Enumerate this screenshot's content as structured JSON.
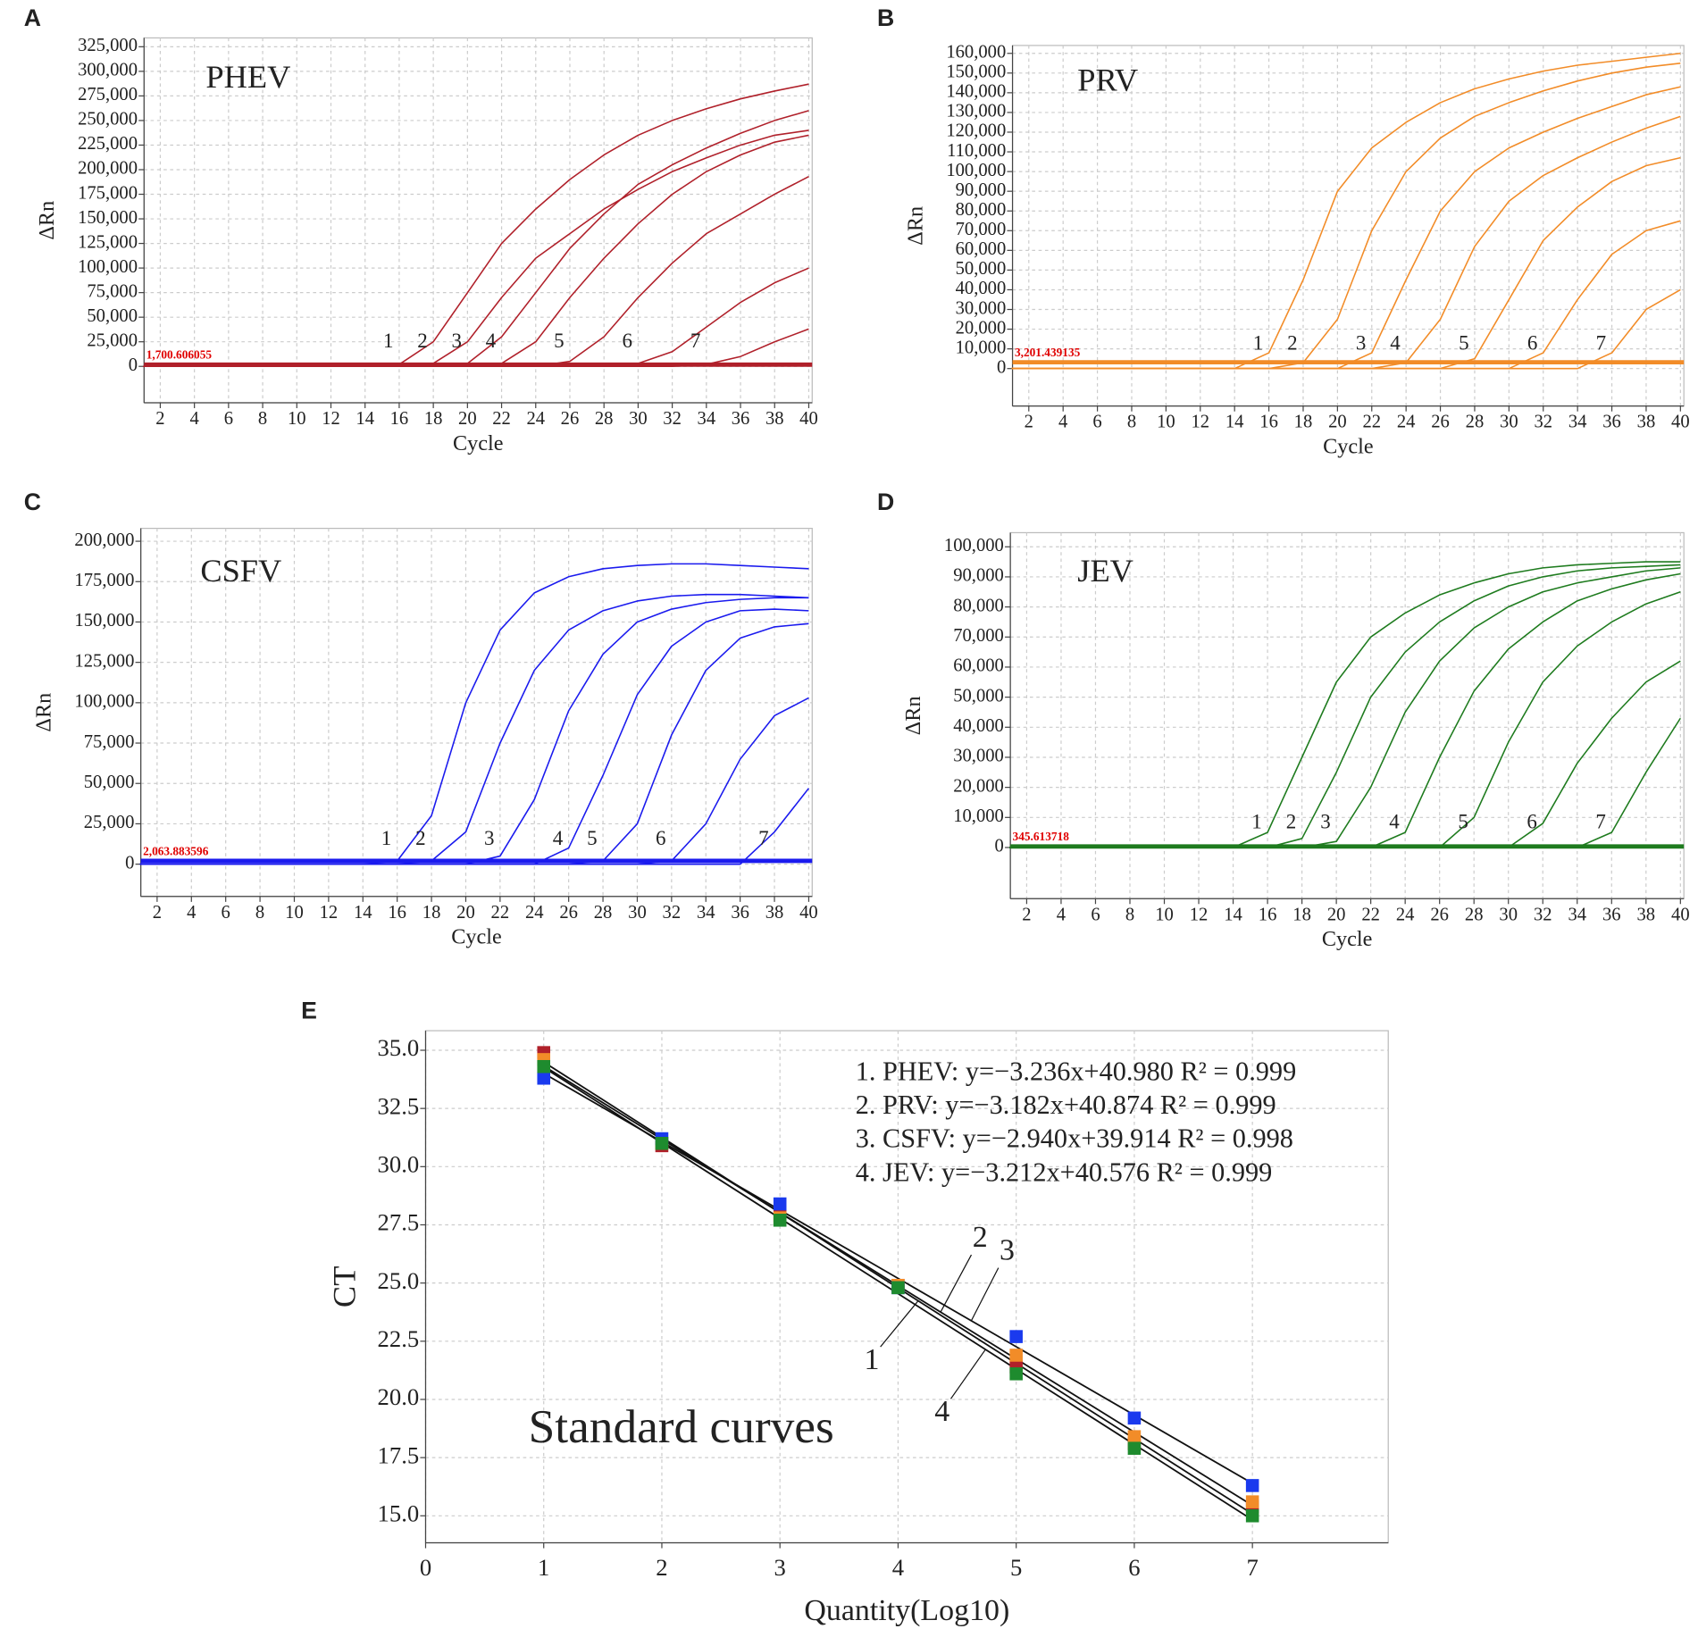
{
  "chart_data": [
    {
      "type": "line",
      "panel_label": "A",
      "title": "PHEV",
      "x_label": "Cycle",
      "y_label": "ΔRn",
      "color": "#b0202a",
      "grid": true,
      "threshold": {
        "value": 1700.606055,
        "label": "1,700.606055"
      },
      "xlim": [
        1.05,
        40.2
      ],
      "xticks": [
        2,
        4,
        6,
        8,
        10,
        12,
        14,
        16,
        18,
        20,
        22,
        24,
        26,
        28,
        30,
        32,
        34,
        36,
        38,
        40
      ],
      "ylim": [
        -37000,
        334000
      ],
      "yticks": [
        0,
        {
          "value": 25000,
          "label": "25,000"
        },
        {
          "value": 50000,
          "label": "50,000"
        },
        {
          "value": 75000,
          "label": "75,000"
        },
        {
          "value": 100000,
          "label": "100,000"
        },
        {
          "value": 125000,
          "label": "125,000"
        },
        {
          "value": 150000,
          "label": "150,000"
        },
        {
          "value": 175000,
          "label": "175,000"
        },
        {
          "value": 200000,
          "label": "200,000"
        },
        {
          "value": 225000,
          "label": "225,000"
        },
        {
          "value": 250000,
          "label": "250,000"
        },
        {
          "value": 275000,
          "label": "275,000"
        },
        {
          "value": 300000,
          "label": "300,000"
        },
        {
          "value": 325000,
          "label": "325,000"
        }
      ],
      "x": [
        1,
        8,
        14,
        16,
        18,
        20,
        22,
        24,
        26,
        28,
        30,
        32,
        34,
        36,
        38,
        40
      ],
      "series": [
        {
          "name": "1",
          "values": [
            0,
            0,
            0,
            2000,
            25000,
            75000,
            125000,
            160000,
            190000,
            215000,
            235000,
            250000,
            262000,
            272000,
            280000,
            287000
          ]
        },
        {
          "name": "2",
          "values": [
            0,
            0,
            0,
            0,
            3000,
            25000,
            70000,
            110000,
            135000,
            160000,
            180000,
            198000,
            212000,
            225000,
            235000,
            240000
          ]
        },
        {
          "name": "3",
          "values": [
            0,
            0,
            0,
            0,
            0,
            3000,
            30000,
            75000,
            120000,
            155000,
            185000,
            205000,
            222000,
            237000,
            250000,
            260000
          ]
        },
        {
          "name": "4",
          "values": [
            0,
            0,
            0,
            0,
            0,
            0,
            3000,
            25000,
            70000,
            110000,
            145000,
            175000,
            198000,
            215000,
            228000,
            235000
          ]
        },
        {
          "name": "5",
          "values": [
            0,
            0,
            0,
            0,
            0,
            0,
            0,
            0,
            5000,
            30000,
            70000,
            105000,
            135000,
            155000,
            175000,
            193000
          ]
        },
        {
          "name": "6",
          "values": [
            0,
            0,
            0,
            0,
            0,
            0,
            0,
            0,
            0,
            0,
            3000,
            15000,
            40000,
            65000,
            85000,
            100000
          ]
        },
        {
          "name": "7",
          "values": [
            0,
            0,
            0,
            0,
            0,
            0,
            0,
            0,
            0,
            0,
            0,
            0,
            2000,
            10000,
            25000,
            38000
          ]
        }
      ]
    },
    {
      "type": "line",
      "panel_label": "B",
      "title": "PRV",
      "x_label": "Cycle",
      "y_label": "ΔRn",
      "color": "#f28c28",
      "grid": true,
      "threshold": {
        "value": 3201.439135,
        "label": "3,201.439135"
      },
      "xlim": [
        1.05,
        40.2
      ],
      "xticks": [
        2,
        4,
        6,
        8,
        10,
        12,
        14,
        16,
        18,
        20,
        22,
        24,
        26,
        28,
        30,
        32,
        34,
        36,
        38,
        40
      ],
      "ylim": [
        -19000,
        164000
      ],
      "yticks": [
        0,
        {
          "value": 10000,
          "label": "10,000"
        },
        {
          "value": 20000,
          "label": "20,000"
        },
        {
          "value": 30000,
          "label": "30,000"
        },
        {
          "value": 40000,
          "label": "40,000"
        },
        {
          "value": 50000,
          "label": "50,000"
        },
        {
          "value": 60000,
          "label": "60,000"
        },
        {
          "value": 70000,
          "label": "70,000"
        },
        {
          "value": 80000,
          "label": "80,000"
        },
        {
          "value": 90000,
          "label": "90,000"
        },
        {
          "value": 100000,
          "label": "100,000"
        },
        {
          "value": 110000,
          "label": "110,000"
        },
        {
          "value": 120000,
          "label": "120,000"
        },
        {
          "value": 130000,
          "label": "130,000"
        },
        {
          "value": 140000,
          "label": "140,000"
        },
        {
          "value": 150000,
          "label": "150,000"
        },
        {
          "value": 160000,
          "label": "160,000"
        }
      ],
      "x": [
        1,
        8,
        14,
        16,
        18,
        20,
        22,
        24,
        26,
        28,
        30,
        32,
        34,
        36,
        38,
        40
      ],
      "series": [
        {
          "name": "1",
          "values": [
            0,
            0,
            0,
            8000,
            45000,
            90000,
            112000,
            125000,
            135000,
            142000,
            147000,
            151000,
            154000,
            156000,
            158000,
            160000
          ]
        },
        {
          "name": "2",
          "values": [
            0,
            0,
            0,
            0,
            3000,
            25000,
            70000,
            100000,
            117000,
            128000,
            135000,
            141000,
            146000,
            150000,
            153000,
            155000
          ]
        },
        {
          "name": "3",
          "values": [
            0,
            0,
            0,
            0,
            0,
            0,
            8000,
            45000,
            80000,
            100000,
            112000,
            120000,
            127000,
            133000,
            139000,
            143000
          ]
        },
        {
          "name": "4",
          "values": [
            0,
            0,
            0,
            0,
            0,
            0,
            0,
            3000,
            25000,
            62000,
            85000,
            98000,
            107000,
            115000,
            122000,
            128000
          ]
        },
        {
          "name": "5",
          "values": [
            0,
            0,
            0,
            0,
            0,
            0,
            0,
            0,
            0,
            5000,
            35000,
            65000,
            82000,
            95000,
            103000,
            107000
          ]
        },
        {
          "name": "6",
          "values": [
            0,
            0,
            0,
            0,
            0,
            0,
            0,
            0,
            0,
            0,
            0,
            8000,
            35000,
            58000,
            70000,
            75000
          ]
        },
        {
          "name": "7",
          "values": [
            0,
            0,
            0,
            0,
            0,
            0,
            0,
            0,
            0,
            0,
            0,
            0,
            0,
            8000,
            30000,
            40000
          ]
        }
      ]
    },
    {
      "type": "line",
      "panel_label": "C",
      "title": "CSFV",
      "x_label": "Cycle",
      "y_label": "ΔRn",
      "color": "#1a1aee",
      "grid": true,
      "threshold": {
        "value": 2063.883596,
        "label": "2,063.883596"
      },
      "xlim": [
        1.05,
        40.2
      ],
      "xticks": [
        2,
        4,
        6,
        8,
        10,
        12,
        14,
        16,
        18,
        20,
        22,
        24,
        26,
        28,
        30,
        32,
        34,
        36,
        38,
        40
      ],
      "ylim": [
        -20000,
        208000
      ],
      "yticks": [
        0,
        {
          "value": 25000,
          "label": "25,000"
        },
        {
          "value": 50000,
          "label": "50,000"
        },
        {
          "value": 75000,
          "label": "75,000"
        },
        {
          "value": 100000,
          "label": "100,000"
        },
        {
          "value": 125000,
          "label": "125,000"
        },
        {
          "value": 150000,
          "label": "150,000"
        },
        {
          "value": 175000,
          "label": "175,000"
        },
        {
          "value": 200000,
          "label": "200,000"
        }
      ],
      "x": [
        1,
        8,
        14,
        16,
        18,
        20,
        22,
        24,
        26,
        28,
        30,
        32,
        34,
        36,
        38,
        40
      ],
      "series": [
        {
          "name": "1",
          "values": [
            0,
            0,
            0,
            2000,
            30000,
            100000,
            145000,
            168000,
            178000,
            183000,
            185000,
            186000,
            186000,
            185000,
            184000,
            183000
          ]
        },
        {
          "name": "2",
          "values": [
            0,
            0,
            0,
            0,
            2000,
            20000,
            75000,
            120000,
            145000,
            157000,
            163000,
            166000,
            167000,
            167000,
            166000,
            165000
          ]
        },
        {
          "name": "3",
          "values": [
            0,
            0,
            0,
            0,
            0,
            0,
            5000,
            40000,
            95000,
            130000,
            150000,
            158000,
            162000,
            164000,
            165000,
            165000
          ]
        },
        {
          "name": "4",
          "values": [
            0,
            0,
            0,
            0,
            0,
            0,
            0,
            0,
            10000,
            55000,
            105000,
            135000,
            150000,
            157000,
            158000,
            157000
          ]
        },
        {
          "name": "5",
          "values": [
            0,
            0,
            0,
            0,
            0,
            0,
            0,
            0,
            0,
            2000,
            25000,
            80000,
            120000,
            140000,
            147000,
            149000
          ]
        },
        {
          "name": "6",
          "values": [
            0,
            0,
            0,
            0,
            0,
            0,
            0,
            0,
            0,
            0,
            0,
            2000,
            25000,
            65000,
            92000,
            103000
          ]
        },
        {
          "name": "7",
          "values": [
            0,
            0,
            0,
            0,
            0,
            0,
            0,
            0,
            0,
            0,
            0,
            0,
            0,
            0,
            20000,
            47000
          ]
        }
      ]
    },
    {
      "type": "line",
      "panel_label": "D",
      "title": "JEV",
      "x_label": "Cycle",
      "y_label": "ΔRn",
      "color": "#1e7b1e",
      "grid": true,
      "threshold": {
        "value": 345.613718,
        "label": "345.613718"
      },
      "xlim": [
        1.05,
        40.2
      ],
      "xticks": [
        2,
        4,
        6,
        8,
        10,
        12,
        14,
        16,
        18,
        20,
        22,
        24,
        26,
        28,
        30,
        32,
        34,
        36,
        38,
        40
      ],
      "ylim": [
        -17000,
        104700
      ],
      "yticks": [
        0,
        {
          "value": 10000,
          "label": "10,000"
        },
        {
          "value": 20000,
          "label": "20,000"
        },
        {
          "value": 30000,
          "label": "30,000"
        },
        {
          "value": 40000,
          "label": "40,000"
        },
        {
          "value": 50000,
          "label": "50,000"
        },
        {
          "value": 60000,
          "label": "60,000"
        },
        {
          "value": 70000,
          "label": "70,000"
        },
        {
          "value": 80000,
          "label": "80,000"
        },
        {
          "value": 90000,
          "label": "90,000"
        },
        {
          "value": 100000,
          "label": "100,000"
        }
      ],
      "x": [
        1,
        8,
        14,
        16,
        18,
        20,
        22,
        24,
        26,
        28,
        30,
        32,
        34,
        36,
        38,
        40
      ],
      "series": [
        {
          "name": "1",
          "values": [
            0,
            0,
            0,
            5000,
            30000,
            55000,
            70000,
            78000,
            84000,
            88000,
            91000,
            93000,
            94000,
            94500,
            95000,
            95000
          ]
        },
        {
          "name": "2",
          "values": [
            0,
            0,
            0,
            0,
            3000,
            25000,
            50000,
            65000,
            75000,
            82000,
            87000,
            90000,
            92000,
            93000,
            93500,
            94000
          ]
        },
        {
          "name": "3",
          "values": [
            0,
            0,
            0,
            0,
            0,
            2000,
            20000,
            45000,
            62000,
            73000,
            80000,
            85000,
            88000,
            90000,
            92000,
            93000
          ]
        },
        {
          "name": "4",
          "values": [
            0,
            0,
            0,
            0,
            0,
            0,
            0,
            5000,
            30000,
            52000,
            66000,
            75000,
            82000,
            86000,
            89000,
            91000
          ]
        },
        {
          "name": "5",
          "values": [
            0,
            0,
            0,
            0,
            0,
            0,
            0,
            0,
            0,
            10000,
            35000,
            55000,
            67000,
            75000,
            81000,
            85000
          ]
        },
        {
          "name": "6",
          "values": [
            0,
            0,
            0,
            0,
            0,
            0,
            0,
            0,
            0,
            0,
            0,
            8000,
            28000,
            43000,
            55000,
            62000
          ]
        },
        {
          "name": "7",
          "values": [
            0,
            0,
            0,
            0,
            0,
            0,
            0,
            0,
            0,
            0,
            0,
            0,
            0,
            5000,
            25000,
            43000
          ]
        }
      ]
    },
    {
      "type": "scatter",
      "panel_label": "E",
      "annotation": "Standard curves",
      "x_label": "Quantity(Log10)",
      "y_label": "CT",
      "grid": true,
      "xlim": [
        0,
        8.15
      ],
      "xticks": [
        0,
        1,
        2,
        3,
        4,
        5,
        6,
        7
      ],
      "ylim": [
        13.84,
        35.84
      ],
      "yticks": [
        {
          "value": 15,
          "label": "15.0"
        },
        17.5,
        {
          "value": 20,
          "label": "20.0"
        },
        22.5,
        {
          "value": 25,
          "label": "25.0"
        },
        27.5,
        {
          "value": 30,
          "label": "30.0"
        },
        32.5,
        {
          "value": 35,
          "label": "35.0"
        }
      ],
      "x": [
        1,
        2,
        3,
        4,
        5,
        6,
        7
      ],
      "series": [
        {
          "name": "1",
          "equation": "1. PHEV: y=−3.236x+40.980 R² = 0.999",
          "color": "#b0202a",
          "values": [
            34.9,
            30.9,
            27.9,
            24.9,
            21.4,
            18.1,
            15.4
          ]
        },
        {
          "name": "2",
          "equation": "2. PRV: y=−3.182x+40.874 R² = 0.999",
          "color": "#f28c28",
          "values": [
            34.6,
            31.0,
            27.8,
            24.9,
            21.9,
            18.4,
            15.6
          ]
        },
        {
          "name": "3",
          "equation": "3. CSFV: y=−2.940x+39.914 R² = 0.998",
          "color": "#1a3aee",
          "values": [
            33.8,
            31.2,
            28.4,
            24.8,
            22.7,
            19.2,
            16.3
          ]
        },
        {
          "name": "4",
          "equation": "4. JEV: y=−3.212x+40.576 R² = 0.999",
          "color": "#1e8b2e",
          "values": [
            34.3,
            31.0,
            27.7,
            24.8,
            21.1,
            17.9,
            15.0
          ]
        }
      ]
    }
  ]
}
